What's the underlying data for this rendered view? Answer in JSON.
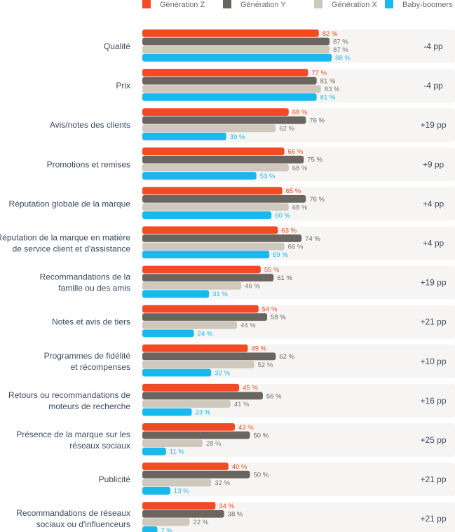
{
  "chart_data": {
    "type": "bar",
    "orientation": "horizontal",
    "legend_position": "top",
    "xlim": [
      0,
      100
    ],
    "series": [
      {
        "name": "Génération Z",
        "color": "#f24a25",
        "values": [
          82,
          77,
          68,
          66,
          65,
          63,
          55,
          54,
          49,
          45,
          43,
          40,
          34
        ]
      },
      {
        "name": "Génération Y",
        "color": "#6b6560",
        "values": [
          87,
          81,
          76,
          75,
          76,
          74,
          61,
          58,
          62,
          56,
          50,
          50,
          38
        ]
      },
      {
        "name": "Génération X",
        "color": "#cfc9bd",
        "values": [
          87,
          83,
          62,
          68,
          68,
          66,
          46,
          44,
          52,
          41,
          28,
          32,
          22
        ]
      },
      {
        "name": "Baby-boomers",
        "color": "#19b9ee",
        "values": [
          88,
          81,
          39,
          53,
          60,
          59,
          31,
          24,
          32,
          23,
          11,
          13,
          7
        ]
      }
    ],
    "categories": [
      [
        "Qualité"
      ],
      [
        "Prix"
      ],
      [
        "Avis/notes des clients"
      ],
      [
        "Promotions et remises"
      ],
      [
        "Réputation globale de la marque"
      ],
      [
        "Réputation de la marque en matière",
        "de service client et d'assistance"
      ],
      [
        "Recommandations de la",
        "famille ou des amis"
      ],
      [
        "Notes et avis de tiers"
      ],
      [
        "Programmes de fidélité",
        "et récompenses"
      ],
      [
        "Retours ou recommandations de",
        "moteurs de recherche"
      ],
      [
        "Présence de la marque sur les",
        "réseaux sociaux"
      ],
      [
        "Publicité"
      ],
      [
        "Recommandations de réseaux",
        "sociaux ou d'influenceurs"
      ]
    ],
    "differences": [
      "-4 pp",
      "-4 pp",
      "+19 pp",
      "+9 pp",
      "+4 pp",
      "+4 pp",
      "+19 pp",
      "+21 pp",
      "+10 pp",
      "+16 pp",
      "+25 pp",
      "+21 pp",
      "+21 pp"
    ],
    "value_suffix": " %",
    "value_label_colors": {
      "Génération Z": "#f24a25",
      "Génération Y": "#6b6560",
      "Génération X": "#7a7570",
      "Baby-boomers": "#19b9ee"
    },
    "row_background": "#f6f5f3"
  }
}
